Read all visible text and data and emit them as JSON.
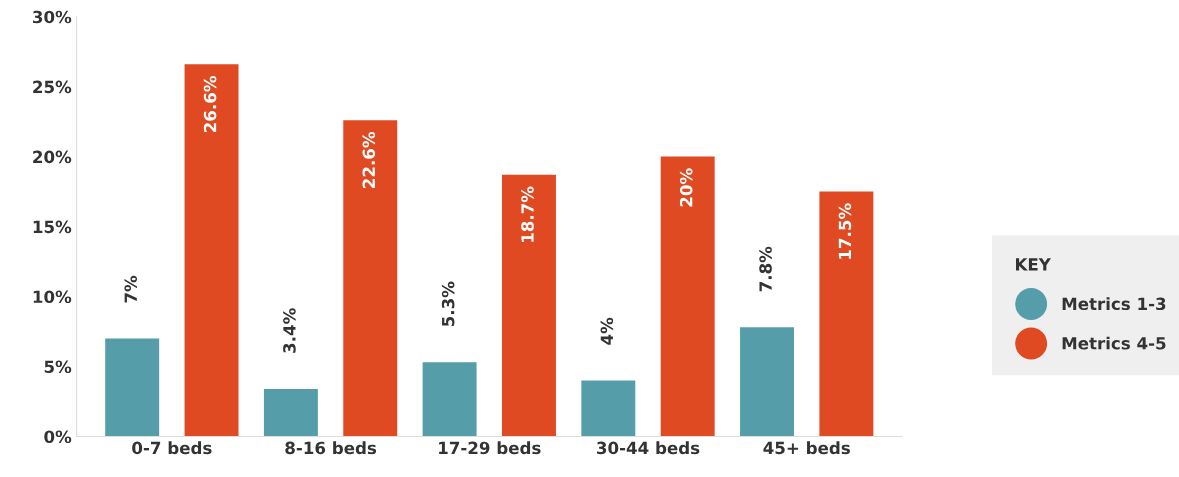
{
  "chart_data": {
    "type": "bar",
    "categories": [
      "0-7 beds",
      "8-16 beds",
      "17-29 beds",
      "30-44 beds",
      "45+ beds"
    ],
    "series": [
      {
        "name": "Metrics 1-3",
        "color": "#559ea9",
        "values": [
          7,
          3.4,
          5.3,
          4,
          7.8
        ],
        "value_labels": [
          "7%",
          "3.4%",
          "5.3%",
          "4%",
          "7.8%"
        ]
      },
      {
        "name": "Metrics 4-5",
        "color": "#e04a22",
        "values": [
          26.6,
          22.6,
          18.7,
          20,
          17.5
        ],
        "value_labels": [
          "26.6%",
          "22.6%",
          "18.7%",
          "20%",
          "17.5%"
        ]
      }
    ],
    "ylim": [
      0,
      30
    ],
    "yticks": [
      {
        "value": 0,
        "label": "0%"
      },
      {
        "value": 5,
        "label": "5%"
      },
      {
        "value": 10,
        "label": "10%"
      },
      {
        "value": 15,
        "label": "15%"
      },
      {
        "value": 20,
        "label": "20%"
      },
      {
        "value": 25,
        "label": "25%"
      },
      {
        "value": 30,
        "label": "30%"
      }
    ],
    "legend_title": "KEY",
    "legend": "right",
    "grid": false
  }
}
